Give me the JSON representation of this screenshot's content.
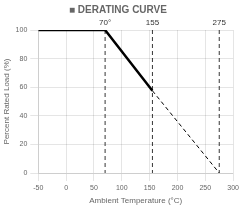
{
  "chart_data": {
    "type": "line",
    "title": "■ DERATING CURVE",
    "xlabel": "Ambient Temperature (°C)",
    "ylabel": "Percent Rated Load (%)",
    "xlim": [
      -50,
      300
    ],
    "ylim": [
      0,
      100
    ],
    "xticks": [
      -50,
      0,
      50,
      100,
      150,
      200,
      250,
      300
    ],
    "yticks": [
      0,
      20,
      40,
      60,
      80,
      100
    ],
    "grid": true,
    "series": [
      {
        "x": [
          -50,
          70,
          155
        ],
        "values": [
          100,
          100,
          57.5
        ],
        "color": "#000000",
        "line_style": "solid"
      },
      {
        "x": [
          155,
          275
        ],
        "values": [
          57.5,
          0
        ],
        "color": "#000000",
        "line_style": "dashed"
      }
    ],
    "annotations": [
      {
        "x": 70,
        "label": "70°",
        "color": "#000000",
        "line_style": "dashed"
      },
      {
        "x": 155,
        "label": "155",
        "color": "#000000",
        "line_style": "dashed"
      },
      {
        "x": 275,
        "label": "275",
        "color": "#000000",
        "line_style": "dashed"
      }
    ]
  }
}
